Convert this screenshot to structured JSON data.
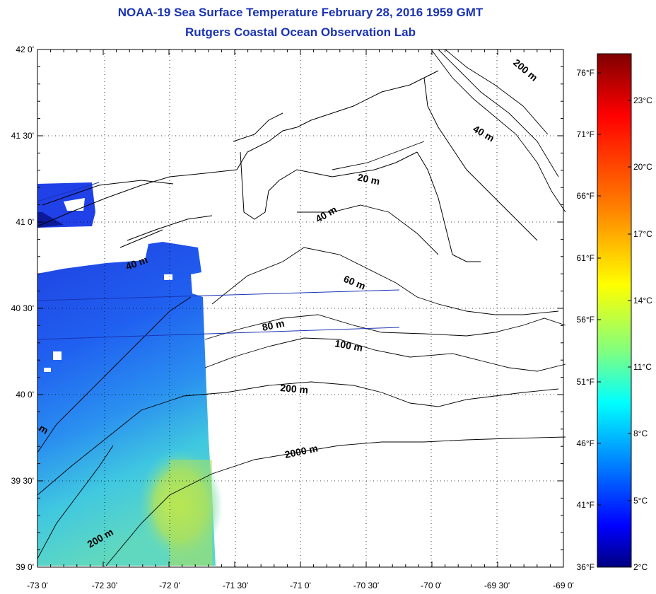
{
  "map": {
    "title": "NOAA-19 Sea Surface Temperature February 28, 2016 1959 GMT",
    "subtitle": "Rutgers Coastal Ocean Observation Lab",
    "lon_labels": [
      "-73 0'",
      "-72 30'",
      "-72 0'",
      "-71 30'",
      "-71 0'",
      "-70 30'",
      "-70 0'",
      "-69 30'",
      "-69 0'"
    ],
    "lat_labels": [
      "42 0'",
      "41 30'",
      "41 0'",
      "40 30'",
      "40 0'",
      "39 30'",
      "39 0'"
    ],
    "contour_labels": [
      "200 m",
      "40 m",
      "20 m",
      "40 m",
      "40 m",
      "60 m",
      "80 m",
      "100 m",
      "200 m",
      "2000 m",
      "200 m",
      "m"
    ],
    "colors": {
      "title": "#1a33b3",
      "coast": "#000000",
      "grid": "#000000"
    }
  },
  "colorbar": {
    "fahrenheit_labels": [
      "76°F",
      "71°F",
      "66°F",
      "61°F",
      "56°F",
      "51°F",
      "46°F",
      "41°F",
      "36°F"
    ],
    "celsius_labels": [
      "23°C",
      "20°C",
      "17°C",
      "14°C",
      "11°C",
      "8°C",
      "5°C",
      "2°C"
    ],
    "range_c": [
      2,
      25
    ],
    "colors": [
      "#7f0000",
      "#ff0000",
      "#ff7f00",
      "#ffff00",
      "#7fff7f",
      "#00ffff",
      "#007fff",
      "#0000ff",
      "#00007f"
    ]
  }
}
